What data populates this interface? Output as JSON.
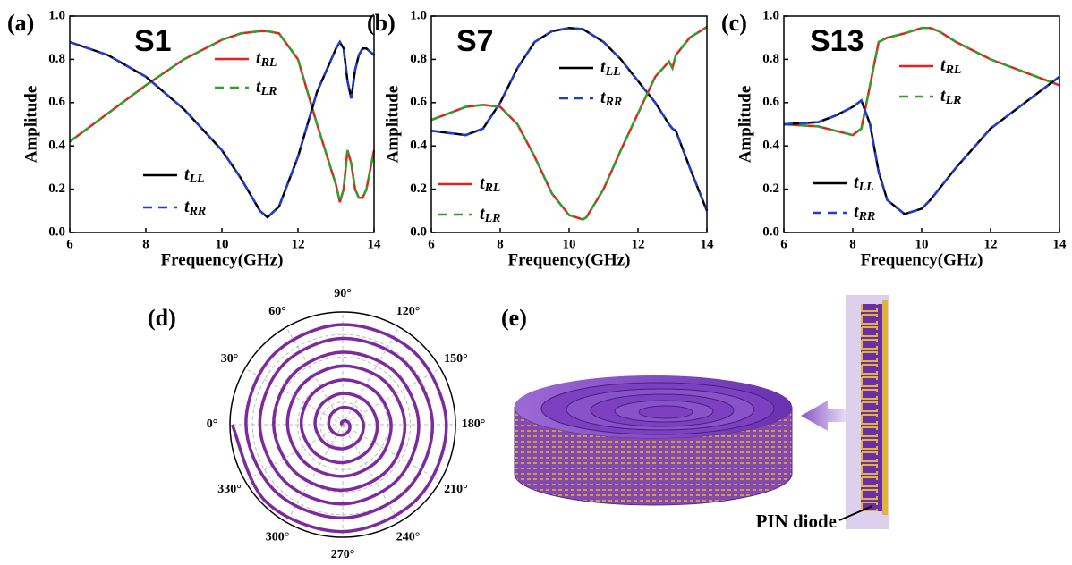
{
  "chart_data": [
    {
      "type": "line",
      "panel_label": "(a)",
      "title": "S1",
      "xlabel": "Frequency(GHz)",
      "ylabel": "Amplitude",
      "xlim": [
        6,
        14
      ],
      "ylim": [
        0,
        1
      ],
      "xticks": [
        6,
        8,
        10,
        12,
        14
      ],
      "yticks": [
        {
          "value": 0,
          "label": "0.0"
        },
        0.2,
        0.4,
        0.6,
        0.8,
        {
          "value": 1,
          "label": "1.0"
        }
      ],
      "x": [
        6,
        7,
        8,
        9,
        10,
        10.5,
        11,
        11.2,
        11.5,
        12,
        12.5,
        13,
        13.1,
        13.2,
        13.3,
        13.4,
        13.5,
        13.6,
        13.7,
        13.8,
        14
      ],
      "series": [
        {
          "name": "tRL",
          "color": "#e8201c",
          "style": "solid",
          "values": [
            0.42,
            0.55,
            0.68,
            0.8,
            0.89,
            0.92,
            0.93,
            0.93,
            0.92,
            0.8,
            0.5,
            0.22,
            0.14,
            0.2,
            0.38,
            0.32,
            0.2,
            0.16,
            0.16,
            0.2,
            0.38
          ]
        },
        {
          "name": "tLR",
          "color": "#2ea02c",
          "style": "dashed",
          "values": [
            0.42,
            0.55,
            0.68,
            0.8,
            0.89,
            0.92,
            0.93,
            0.93,
            0.92,
            0.8,
            0.5,
            0.22,
            0.14,
            0.2,
            0.38,
            0.32,
            0.2,
            0.16,
            0.16,
            0.2,
            0.38
          ]
        },
        {
          "name": "tLL",
          "color": "#000000",
          "style": "solid",
          "values": [
            0.88,
            0.82,
            0.72,
            0.57,
            0.38,
            0.25,
            0.1,
            0.07,
            0.12,
            0.35,
            0.65,
            0.85,
            0.88,
            0.85,
            0.7,
            0.62,
            0.75,
            0.82,
            0.85,
            0.85,
            0.82
          ]
        },
        {
          "name": "tRR",
          "color": "#1f3bd6",
          "style": "dashed",
          "values": [
            0.88,
            0.82,
            0.72,
            0.57,
            0.38,
            0.25,
            0.1,
            0.07,
            0.12,
            0.35,
            0.65,
            0.85,
            0.88,
            0.85,
            0.7,
            0.62,
            0.75,
            0.82,
            0.85,
            0.85,
            0.82
          ]
        }
      ]
    },
    {
      "type": "line",
      "panel_label": "(b)",
      "title": "S7",
      "xlabel": "Frequency(GHz)",
      "ylabel": "Amplitude",
      "xlim": [
        6,
        14
      ],
      "ylim": [
        0,
        1
      ],
      "xticks": [
        6,
        8,
        10,
        12,
        14
      ],
      "yticks": [
        {
          "value": 0,
          "label": "0.0"
        },
        0.2,
        0.4,
        0.6,
        0.8,
        {
          "value": 1,
          "label": "1.0"
        }
      ],
      "x": [
        6,
        6.5,
        7,
        7.5,
        8,
        8.5,
        9,
        9.5,
        10,
        10.4,
        10.5,
        11,
        11.5,
        12,
        12.5,
        12.9,
        13,
        13.1,
        13.5,
        14
      ],
      "series": [
        {
          "name": "tLL",
          "color": "#000000",
          "style": "solid",
          "values": [
            0.47,
            0.46,
            0.45,
            0.48,
            0.6,
            0.76,
            0.88,
            0.93,
            0.945,
            0.94,
            0.93,
            0.88,
            0.8,
            0.7,
            0.6,
            0.5,
            0.48,
            0.47,
            0.3,
            0.1
          ]
        },
        {
          "name": "tRR",
          "color": "#1f3bd6",
          "style": "dashed",
          "values": [
            0.47,
            0.46,
            0.45,
            0.48,
            0.6,
            0.76,
            0.88,
            0.93,
            0.945,
            0.94,
            0.93,
            0.88,
            0.8,
            0.7,
            0.6,
            0.5,
            0.48,
            0.47,
            0.3,
            0.1
          ]
        },
        {
          "name": "tRL",
          "color": "#e8201c",
          "style": "solid",
          "values": [
            0.52,
            0.55,
            0.58,
            0.59,
            0.58,
            0.5,
            0.35,
            0.18,
            0.08,
            0.06,
            0.07,
            0.2,
            0.38,
            0.55,
            0.72,
            0.79,
            0.76,
            0.82,
            0.9,
            0.95
          ]
        },
        {
          "name": "tLR",
          "color": "#2ea02c",
          "style": "dashed",
          "values": [
            0.52,
            0.55,
            0.58,
            0.59,
            0.58,
            0.5,
            0.35,
            0.18,
            0.08,
            0.06,
            0.07,
            0.2,
            0.38,
            0.55,
            0.72,
            0.79,
            0.76,
            0.82,
            0.9,
            0.95
          ]
        }
      ]
    },
    {
      "type": "line",
      "panel_label": "(c)",
      "title": "S13",
      "xlabel": "Frequency(GHz)",
      "ylabel": "Amplitude",
      "xlim": [
        6,
        14
      ],
      "ylim": [
        0,
        1
      ],
      "xticks": [
        6,
        8,
        10,
        12,
        14
      ],
      "yticks": [
        {
          "value": 0,
          "label": "0.0"
        },
        0.2,
        0.4,
        0.6,
        0.8,
        {
          "value": 1,
          "label": "1.0"
        }
      ],
      "x": [
        6,
        7,
        7.5,
        8,
        8.25,
        8.5,
        8.75,
        9,
        9.5,
        10,
        10.25,
        10.5,
        11,
        12,
        13,
        14
      ],
      "series": [
        {
          "name": "tRL",
          "color": "#e8201c",
          "style": "solid",
          "values": [
            0.5,
            0.49,
            0.47,
            0.45,
            0.48,
            0.68,
            0.88,
            0.9,
            0.92,
            0.945,
            0.945,
            0.93,
            0.88,
            0.8,
            0.74,
            0.68
          ]
        },
        {
          "name": "tLR",
          "color": "#2ea02c",
          "style": "dashed",
          "values": [
            0.5,
            0.49,
            0.47,
            0.45,
            0.48,
            0.68,
            0.88,
            0.9,
            0.92,
            0.945,
            0.945,
            0.93,
            0.88,
            0.8,
            0.74,
            0.68
          ]
        },
        {
          "name": "tLL",
          "color": "#000000",
          "style": "solid",
          "values": [
            0.5,
            0.51,
            0.54,
            0.58,
            0.61,
            0.5,
            0.28,
            0.15,
            0.085,
            0.11,
            0.15,
            0.2,
            0.3,
            0.48,
            0.6,
            0.72
          ]
        },
        {
          "name": "tRR",
          "color": "#1f3bd6",
          "style": "dashed",
          "values": [
            0.5,
            0.51,
            0.54,
            0.58,
            0.61,
            0.5,
            0.28,
            0.15,
            0.085,
            0.11,
            0.15,
            0.2,
            0.3,
            0.48,
            0.6,
            0.72
          ]
        }
      ]
    },
    {
      "type": "polar",
      "panel_label": "(d)",
      "color": "#7d2a9e",
      "rlim": [
        0,
        1
      ],
      "rticks": [
        0.2,
        0.4,
        0.6,
        0.8
      ],
      "thetaticks": [
        {
          "value": 0,
          "label": "0°"
        },
        {
          "value": 30,
          "label": "30°"
        },
        {
          "value": 60,
          "label": "60°"
        },
        {
          "value": 90,
          "label": "90°"
        },
        {
          "value": 120,
          "label": "120°"
        },
        {
          "value": 150,
          "label": "150°"
        },
        {
          "value": 180,
          "label": "180°"
        },
        {
          "value": 210,
          "label": "210°"
        },
        {
          "value": 240,
          "label": "240°"
        },
        {
          "value": 270,
          "label": "270°"
        },
        {
          "value": 300,
          "label": "300°"
        },
        {
          "value": 330,
          "label": "330°"
        }
      ],
      "theta": [
        0,
        45,
        90,
        135,
        180,
        225,
        270,
        315,
        360,
        405,
        450,
        495,
        540,
        585,
        630,
        675,
        720,
        765,
        810,
        855,
        900,
        945,
        990,
        1035,
        1080,
        1125,
        1170,
        1215,
        1260,
        1305,
        1350,
        1395,
        1440,
        1485,
        1530,
        1575,
        1620,
        1665,
        1710,
        1755,
        1800,
        1845,
        1890,
        1935,
        1980,
        2025,
        2070,
        2115,
        2160,
        2205,
        2250,
        2295,
        2340,
        2385,
        2430,
        2475,
        2520,
        2565,
        2610,
        2655,
        2700,
        2745,
        2790,
        2835,
        2880
      ],
      "r": [
        0,
        0.015,
        0.031,
        0.046,
        0.061,
        0.077,
        0.092,
        0.107,
        0.123,
        0.138,
        0.153,
        0.168,
        0.184,
        0.199,
        0.214,
        0.23,
        0.245,
        0.26,
        0.276,
        0.291,
        0.306,
        0.322,
        0.337,
        0.352,
        0.368,
        0.383,
        0.398,
        0.413,
        0.429,
        0.444,
        0.459,
        0.475,
        0.49,
        0.505,
        0.521,
        0.536,
        0.551,
        0.567,
        0.582,
        0.597,
        0.613,
        0.628,
        0.643,
        0.658,
        0.674,
        0.689,
        0.704,
        0.72,
        0.735,
        0.75,
        0.766,
        0.781,
        0.796,
        0.812,
        0.827,
        0.842,
        0.858,
        0.873,
        0.888,
        0.903,
        0.919,
        0.934,
        0.949,
        0.965,
        0.98
      ]
    }
  ],
  "illustration": {
    "label": "(e)",
    "annotation": "PIN diode"
  }
}
